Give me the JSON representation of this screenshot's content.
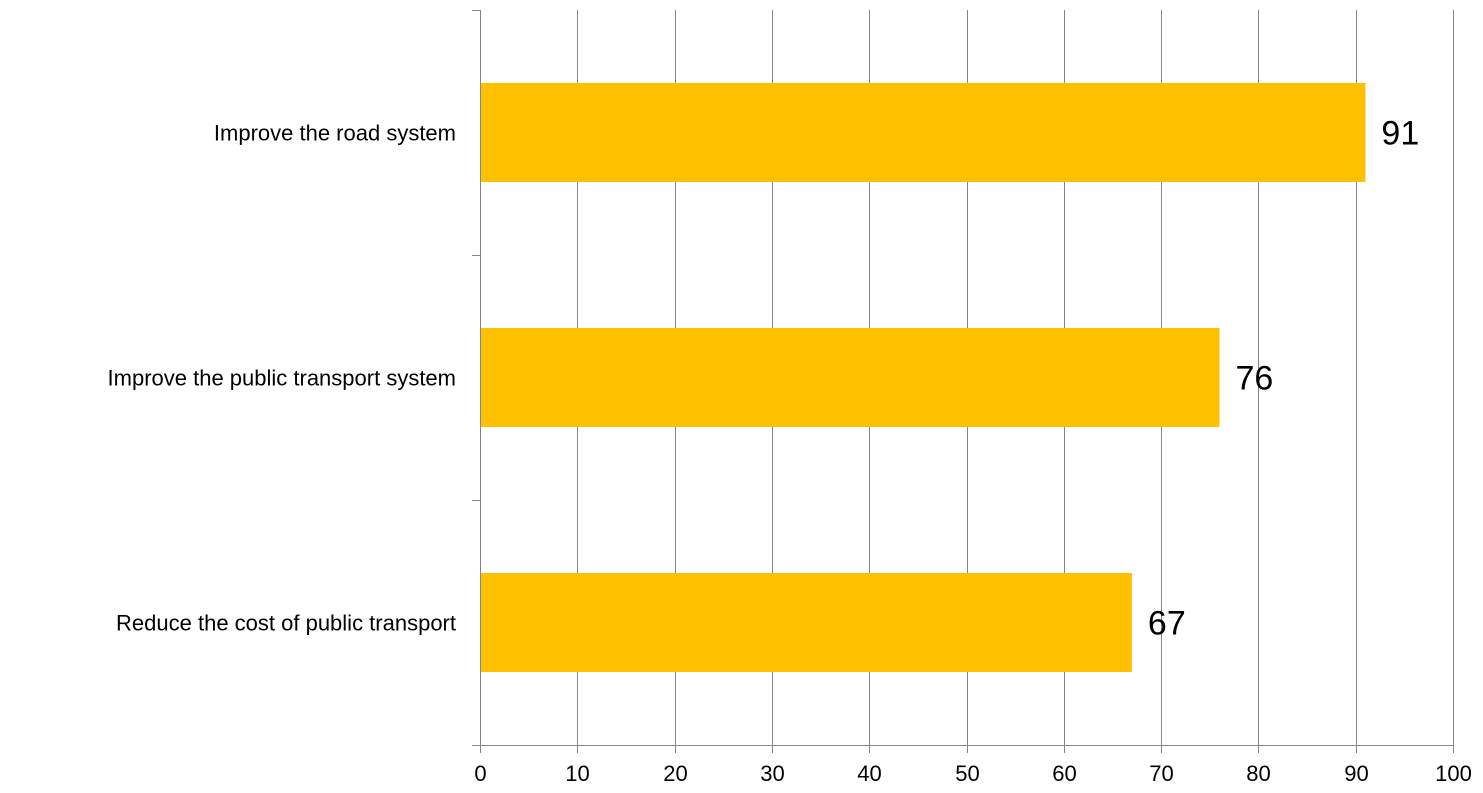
{
  "chart_data": {
    "type": "bar",
    "orientation": "horizontal",
    "categories": [
      "Improve the road system",
      "Improve the public transport system",
      "Reduce the cost of public transport"
    ],
    "values": [
      91,
      76,
      67
    ],
    "data_labels": [
      "91",
      "76",
      "67"
    ],
    "title": "",
    "xlabel": "",
    "ylabel": "",
    "xlim": [
      0,
      100
    ],
    "x_ticks": [
      0,
      10,
      20,
      30,
      40,
      50,
      60,
      70,
      80,
      90,
      100
    ],
    "x_tick_labels": [
      "0",
      "10",
      "20",
      "30",
      "40",
      "50",
      "60",
      "70",
      "80",
      "90",
      "100"
    ],
    "grid": "vertical",
    "legend": "none",
    "bar_color": "#FFC000",
    "grid_color": "#868686"
  }
}
